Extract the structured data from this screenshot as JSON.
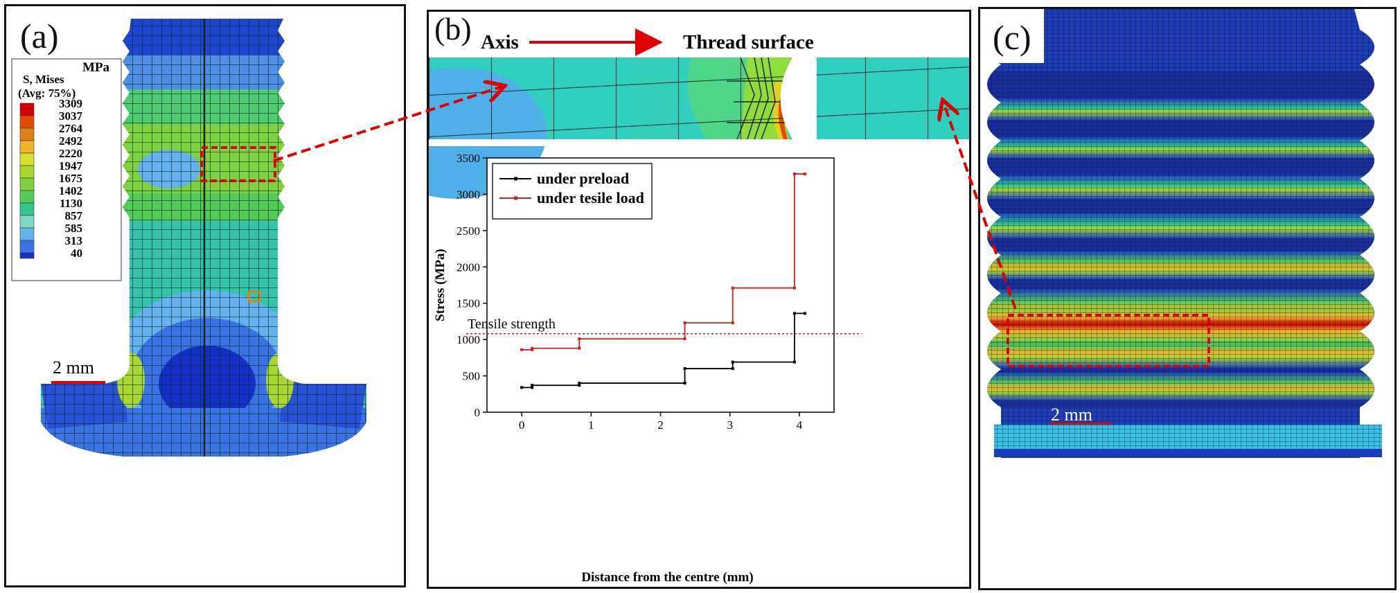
{
  "panel_a": {
    "label": "(a)",
    "legend": {
      "unit": "MPa",
      "title_line1": "S, Mises",
      "title_line2": "(Avg: 75%)",
      "levels": [
        "3309",
        "3037",
        "2764",
        "2492",
        "2220",
        "1947",
        "1675",
        "1402",
        "1130",
        "857",
        "585",
        "313",
        "40"
      ],
      "colors": [
        "#d40000",
        "#e34c00",
        "#e07f16",
        "#f2b32a",
        "#d7e02a",
        "#a8d82d",
        "#7ed23e",
        "#52cc56",
        "#31c98b",
        "#7fd7c7",
        "#62b3ee",
        "#3a73e3",
        "#1330c9"
      ]
    },
    "scale_label": "2 mm"
  },
  "panel_b": {
    "label": "(b)",
    "axis_label": "Axis",
    "thread_label": "Thread surface"
  },
  "panel_c": {
    "label": "(c)",
    "scale_label": "2 mm"
  },
  "chart_data": {
    "type": "line",
    "xlabel": "Distance from the centre (mm)",
    "ylabel": "Stress (MPa)",
    "xlim": [
      -0.5,
      4.5
    ],
    "ylim": [
      0,
      3500
    ],
    "x_ticks": [
      0,
      1,
      2,
      3,
      4
    ],
    "y_ticks": [
      0,
      500,
      1000,
      1500,
      2000,
      2500,
      3000,
      3500
    ],
    "x_tick_labels": [
      "0",
      "1",
      "2",
      "3",
      "4"
    ],
    "y_tick_labels": [
      "0",
      "500",
      "1000",
      "1500",
      "2000",
      "2500",
      "3000",
      "3500"
    ],
    "legend_position": "top-left",
    "series": [
      {
        "name": "under preload",
        "color": "#000000",
        "x": [
          0,
          0.15,
          0.15,
          0.83,
          0.83,
          2.35,
          2.35,
          3.04,
          3.04,
          3.93,
          3.93,
          4.08
        ],
        "y": [
          340,
          340,
          370,
          370,
          400,
          400,
          600,
          600,
          690,
          690,
          1360,
          1360
        ]
      },
      {
        "name": "under tesile load",
        "color": "#cc2222",
        "x": [
          0,
          0.15,
          0.15,
          0.83,
          0.83,
          2.35,
          2.35,
          3.04,
          3.04,
          3.93,
          3.93,
          4.08
        ],
        "y": [
          860,
          860,
          880,
          880,
          1010,
          1010,
          1230,
          1230,
          1710,
          1710,
          3280,
          3280
        ]
      }
    ],
    "reference_line": {
      "label": "Tensile strength",
      "value": 1080,
      "color": "#b01f2a"
    }
  }
}
